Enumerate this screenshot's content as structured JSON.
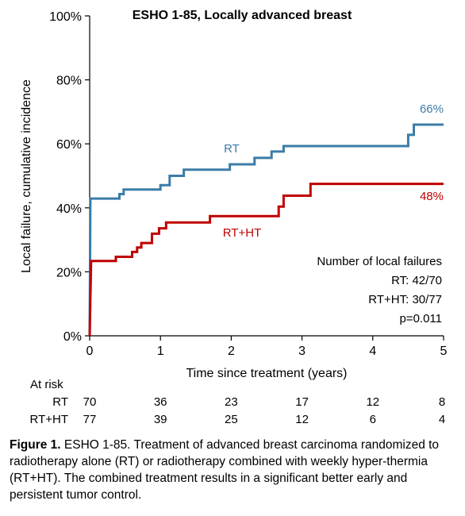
{
  "chart_data": {
    "type": "line",
    "title": "ESHO 1-85, Locally advanced breast",
    "xlabel": "Time since treatment (years)",
    "ylabel": "Local failure, cumulative incidence",
    "xlim": [
      0,
      5
    ],
    "ylim": [
      0,
      100
    ],
    "x_ticks": [
      0,
      1,
      2,
      3,
      4,
      5
    ],
    "y_ticks": [
      0,
      20,
      40,
      60,
      80,
      100
    ],
    "y_tick_labels": [
      "0%",
      "20%",
      "40%",
      "60%",
      "80%",
      "100%"
    ],
    "grid": false,
    "series": [
      {
        "name": "RT",
        "color": "#3b7ca8",
        "end_label": "66%",
        "steps": [
          [
            0,
            0
          ],
          [
            0.01,
            42.9
          ],
          [
            0.42,
            42.9
          ],
          [
            0.42,
            44.3
          ],
          [
            0.48,
            44.3
          ],
          [
            0.48,
            45.7
          ],
          [
            1.0,
            45.7
          ],
          [
            1.0,
            47.1
          ],
          [
            1.13,
            47.1
          ],
          [
            1.13,
            50.0
          ],
          [
            1.33,
            50.0
          ],
          [
            1.33,
            51.9
          ],
          [
            1.98,
            51.9
          ],
          [
            1.98,
            53.6
          ],
          [
            2.33,
            53.6
          ],
          [
            2.33,
            55.6
          ],
          [
            2.57,
            55.6
          ],
          [
            2.57,
            57.6
          ],
          [
            2.74,
            57.6
          ],
          [
            2.74,
            59.3
          ],
          [
            4.5,
            59.3
          ],
          [
            4.5,
            62.8
          ],
          [
            4.58,
            62.8
          ],
          [
            4.58,
            66.0
          ],
          [
            5.0,
            66.0
          ]
        ]
      },
      {
        "name": "RT+HT",
        "color": "#c00000",
        "end_label": "48%",
        "steps": [
          [
            0,
            0
          ],
          [
            0.02,
            23.4
          ],
          [
            0.37,
            23.4
          ],
          [
            0.37,
            24.7
          ],
          [
            0.6,
            24.7
          ],
          [
            0.6,
            26.2
          ],
          [
            0.67,
            26.2
          ],
          [
            0.67,
            27.6
          ],
          [
            0.73,
            27.6
          ],
          [
            0.73,
            29.0
          ],
          [
            0.88,
            29.0
          ],
          [
            0.88,
            31.9
          ],
          [
            0.98,
            31.9
          ],
          [
            0.98,
            33.6
          ],
          [
            1.08,
            33.6
          ],
          [
            1.08,
            35.4
          ],
          [
            1.7,
            35.4
          ],
          [
            1.7,
            37.4
          ],
          [
            2.67,
            37.4
          ],
          [
            2.67,
            40.4
          ],
          [
            2.74,
            40.4
          ],
          [
            2.74,
            43.8
          ],
          [
            3.12,
            43.8
          ],
          [
            3.12,
            47.5
          ],
          [
            5.0,
            47.5
          ]
        ]
      }
    ],
    "annotations": {
      "box_title": "Number of local failures",
      "rt_failures": "RT: 42/70",
      "rtht_failures": "RT+HT: 30/77",
      "p_value": "p=0.011"
    }
  },
  "at_risk": {
    "header": "At risk",
    "rows": [
      {
        "label": "RT",
        "values": [
          "70",
          "36",
          "23",
          "17",
          "12",
          "8"
        ]
      },
      {
        "label": "RT+HT",
        "values": [
          "77",
          "39",
          "25",
          "12",
          "6",
          "4"
        ]
      }
    ]
  },
  "caption": {
    "label": "Figure 1.",
    "text": " ESHO 1-85. Treatment of advanced breast carcinoma randomized to radiotherapy alone (RT) or radiotherapy combined with weekly hyper-thermia (RT+HT). The combined treatment results in a significant better early and persistent tumor control."
  }
}
